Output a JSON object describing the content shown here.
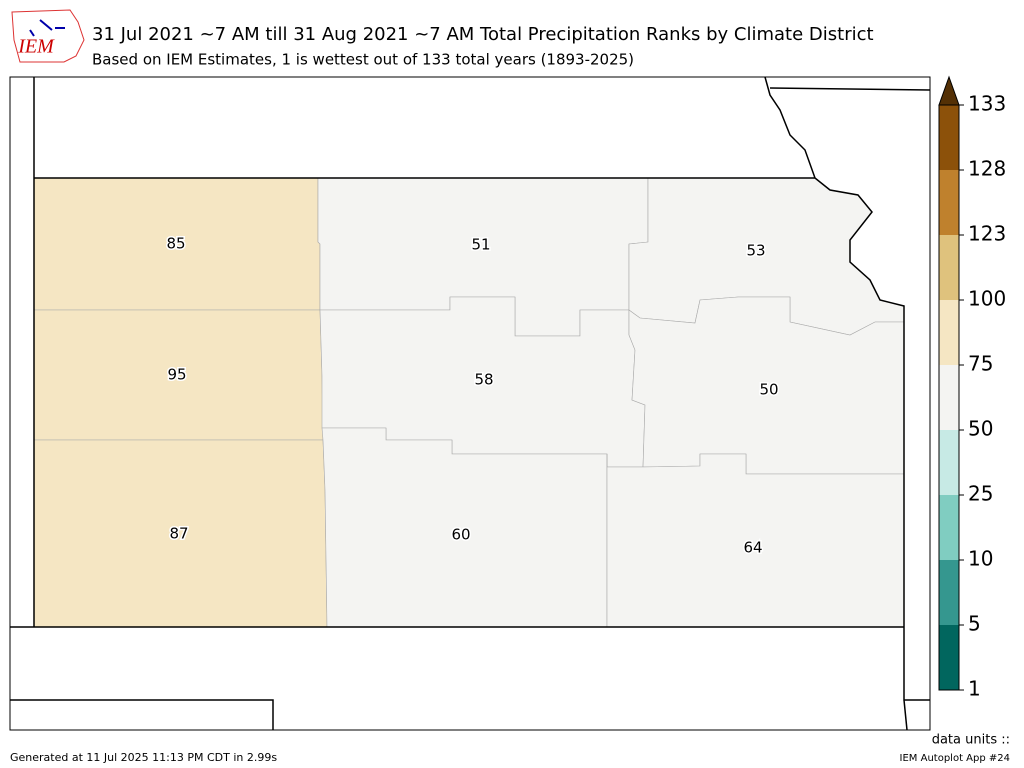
{
  "header": {
    "logo": "IEM",
    "title": "31 Jul 2021 ~7 AM till 31 Aug 2021 ~7 AM Total Precipitation Ranks by Climate District",
    "subtitle": "Based on IEM Estimates, 1 is wettest out of 133 total years (1893-2025)"
  },
  "map": {
    "districts": [
      {
        "rank": 85
      },
      {
        "rank": 95
      },
      {
        "rank": 87
      },
      {
        "rank": 51
      },
      {
        "rank": 58
      },
      {
        "rank": 60
      },
      {
        "rank": 53
      },
      {
        "rank": 50
      },
      {
        "rank": 64
      }
    ],
    "colorbar": {
      "ticks": [
        1,
        5,
        10,
        25,
        50,
        75,
        100,
        123,
        128,
        133
      ],
      "colors": [
        "#01665e",
        "#35978f",
        "#80cdc1",
        "#c7eae5",
        "#f4f4f2",
        "#f5e6c3",
        "#dfc27d",
        "#bf812d",
        "#8c510a"
      ],
      "extend_color": "#543005"
    }
  },
  "footer": {
    "generated": "Generated at 11 Jul 2025 11:13 PM CDT in 2.99s",
    "units": "data units ::",
    "app": "IEM Autoplot App #24"
  }
}
